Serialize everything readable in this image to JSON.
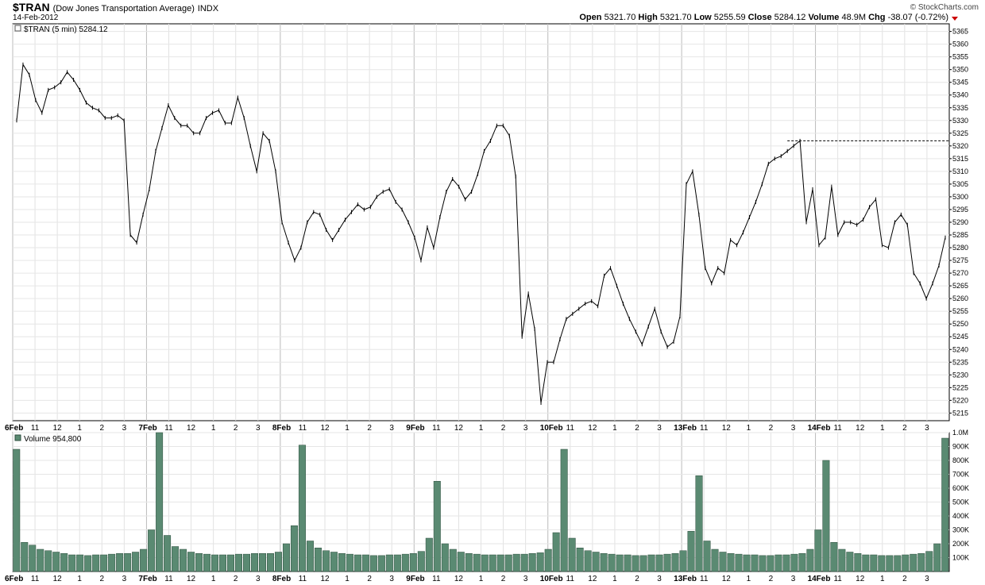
{
  "header": {
    "symbol": "$TRAN",
    "description": "(Dow Jones Transportation Average)",
    "exchange": "INDX",
    "date": "14-Feb-2012",
    "credit": "© StockCharts.com",
    "open_label": "Open",
    "open": "5321.70",
    "high_label": "High",
    "high": "5321.70",
    "low_label": "Low",
    "low": "5255.59",
    "close_label": "Close",
    "close": "5284.12",
    "volume_label": "Volume",
    "volume": "48.9M",
    "chg_label": "Chg",
    "chg": "-38.07 (-0.72%)",
    "chg_color": "#cc0000"
  },
  "chart_data": [
    {
      "type": "line",
      "legend": "$TRAN (5 min) 5284.12",
      "ylim": [
        5212,
        5368
      ],
      "yticks": [
        5215,
        5220,
        5225,
        5230,
        5235,
        5240,
        5245,
        5250,
        5255,
        5260,
        5265,
        5270,
        5275,
        5280,
        5285,
        5290,
        5295,
        5300,
        5305,
        5310,
        5315,
        5320,
        5325,
        5330,
        5335,
        5340,
        5345,
        5350,
        5355,
        5360,
        5365
      ],
      "xticks": [
        {
          "label": "6Feb",
          "day": true
        },
        {
          "label": "11"
        },
        {
          "label": "12"
        },
        {
          "label": "1"
        },
        {
          "label": "2"
        },
        {
          "label": "3"
        },
        {
          "label": "7Feb",
          "day": true
        },
        {
          "label": "11"
        },
        {
          "label": "12"
        },
        {
          "label": "1"
        },
        {
          "label": "2"
        },
        {
          "label": "3"
        },
        {
          "label": "8Feb",
          "day": true
        },
        {
          "label": "11"
        },
        {
          "label": "12"
        },
        {
          "label": "1"
        },
        {
          "label": "2"
        },
        {
          "label": "3"
        },
        {
          "label": "9Feb",
          "day": true
        },
        {
          "label": "11"
        },
        {
          "label": "12"
        },
        {
          "label": "1"
        },
        {
          "label": "2"
        },
        {
          "label": "3"
        },
        {
          "label": "10Feb",
          "day": true
        },
        {
          "label": "11"
        },
        {
          "label": "12"
        },
        {
          "label": "1"
        },
        {
          "label": "2"
        },
        {
          "label": "3"
        },
        {
          "label": "13Feb",
          "day": true
        },
        {
          "label": "11"
        },
        {
          "label": "12"
        },
        {
          "label": "1"
        },
        {
          "label": "2"
        },
        {
          "label": "3"
        },
        {
          "label": "14Feb",
          "day": true
        },
        {
          "label": "11"
        },
        {
          "label": "12"
        },
        {
          "label": "1"
        },
        {
          "label": "2"
        },
        {
          "label": "3"
        }
      ],
      "reference_line": 5322,
      "series": [
        {
          "values": [
            5330,
            5352,
            5348,
            5338,
            5333,
            5342,
            5343,
            5345,
            5349,
            5346,
            5342,
            5337,
            5335,
            5334,
            5331,
            5331,
            5332,
            5330,
            5285,
            5282,
            5293,
            5303,
            5318,
            5327,
            5336,
            5331,
            5328,
            5328,
            5325,
            5325,
            5331,
            5333,
            5334,
            5329,
            5329,
            5339,
            5331,
            5320,
            5310,
            5325,
            5322,
            5310,
            5290,
            5282,
            5275,
            5280,
            5290,
            5294,
            5293,
            5287,
            5283,
            5287,
            5291,
            5294,
            5297,
            5295,
            5296,
            5300,
            5302,
            5303,
            5298,
            5295,
            5290,
            5284,
            5275,
            5288,
            5280,
            5292,
            5302,
            5307,
            5304,
            5299,
            5302,
            5309,
            5318,
            5322,
            5328,
            5328,
            5324,
            5308,
            5245,
            5262,
            5248,
            5219,
            5235,
            5235,
            5244,
            5252,
            5254,
            5256,
            5258,
            5259,
            5257,
            5269,
            5272,
            5265,
            5258,
            5252,
            5247,
            5242,
            5249,
            5256,
            5247,
            5241,
            5243,
            5253,
            5305,
            5310,
            5293,
            5272,
            5266,
            5272,
            5270,
            5283,
            5281,
            5286,
            5292,
            5298,
            5305,
            5313,
            5315,
            5316,
            5318,
            5320,
            5322,
            5290,
            5303,
            5281,
            5284,
            5304,
            5285,
            5290,
            5290,
            5289,
            5291,
            5296,
            5299,
            5281,
            5280,
            5290,
            5293,
            5289,
            5270,
            5266,
            5260,
            5266,
            5273,
            5284
          ]
        }
      ]
    },
    {
      "type": "bar",
      "legend": "Volume 954,800",
      "ylim": [
        0,
        1000000
      ],
      "ytick_labels": [
        "1.0M",
        "900K",
        "800K",
        "700K",
        "600K",
        "500K",
        "400K",
        "300K",
        "200K",
        "100K"
      ],
      "ytick_values": [
        1000000,
        900000,
        800000,
        700000,
        600000,
        500000,
        400000,
        300000,
        200000,
        100000
      ],
      "series": [
        {
          "values": [
            880000,
            210000,
            190000,
            160000,
            150000,
            140000,
            130000,
            120000,
            120000,
            115000,
            120000,
            120000,
            125000,
            130000,
            130000,
            140000,
            160000,
            300000,
            1000000,
            260000,
            180000,
            160000,
            140000,
            130000,
            125000,
            120000,
            120000,
            120000,
            125000,
            125000,
            130000,
            130000,
            130000,
            140000,
            200000,
            330000,
            910000,
            220000,
            170000,
            150000,
            140000,
            130000,
            125000,
            120000,
            120000,
            115000,
            115000,
            120000,
            120000,
            125000,
            130000,
            145000,
            240000,
            650000,
            200000,
            160000,
            140000,
            130000,
            125000,
            120000,
            120000,
            120000,
            120000,
            125000,
            125000,
            130000,
            135000,
            160000,
            280000,
            880000,
            240000,
            170000,
            150000,
            140000,
            130000,
            125000,
            120000,
            120000,
            115000,
            115000,
            120000,
            120000,
            125000,
            130000,
            150000,
            290000,
            690000,
            220000,
            160000,
            140000,
            130000,
            125000,
            120000,
            120000,
            115000,
            115000,
            120000,
            120000,
            125000,
            130000,
            160000,
            300000,
            800000,
            210000,
            160000,
            140000,
            130000,
            120000,
            120000,
            115000,
            115000,
            115000,
            120000,
            125000,
            130000,
            145000,
            200000,
            960000
          ]
        }
      ]
    }
  ]
}
